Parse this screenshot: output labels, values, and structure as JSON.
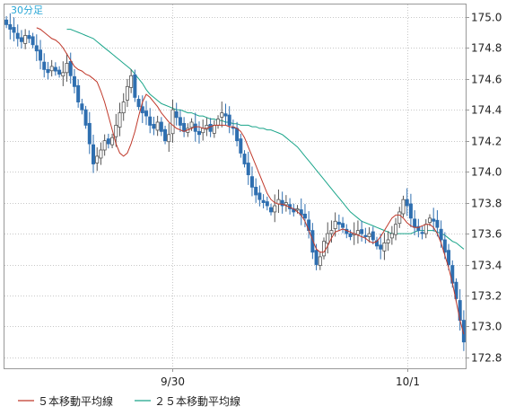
{
  "chart_data": {
    "type": "candlestick",
    "timeframe_label": "30分足",
    "y_ticks": [
      "175.0",
      "174.8",
      "174.6",
      "174.4",
      "174.2",
      "174.0",
      "173.8",
      "173.6",
      "173.4",
      "173.2",
      "173.0",
      "172.8"
    ],
    "ylim": [
      172.73,
      175.08
    ],
    "x_labels": [
      {
        "label": "9/30",
        "index": 44
      },
      {
        "label": "10/1",
        "index": 106
      }
    ],
    "grid": true,
    "legend": [
      {
        "label": "５本移動平均線",
        "color": "#c0392b"
      },
      {
        "label": "２５本移動平均線",
        "color": "#1aa58a"
      }
    ],
    "colors": {
      "up": "#ffffff",
      "down": "#2f6fb0",
      "ma5": "#c0392b",
      "ma25": "#1aa58a",
      "grid": "#c8c8c8"
    },
    "closes": [
      174.95,
      174.92,
      174.9,
      174.86,
      174.84,
      174.88,
      174.86,
      174.82,
      174.78,
      174.72,
      174.66,
      174.64,
      174.68,
      174.65,
      174.63,
      174.64,
      174.7,
      174.62,
      174.55,
      174.45,
      174.4,
      174.3,
      174.18,
      174.05,
      174.1,
      174.14,
      174.2,
      174.18,
      174.22,
      174.3,
      174.38,
      174.45,
      174.55,
      174.62,
      174.48,
      174.42,
      174.38,
      174.36,
      174.3,
      174.28,
      174.32,
      174.26,
      174.2,
      174.24,
      174.4,
      174.35,
      174.3,
      174.26,
      174.28,
      174.32,
      174.26,
      174.24,
      174.28,
      174.3,
      174.26,
      174.3,
      174.34,
      174.38,
      174.36,
      174.3,
      174.28,
      174.2,
      174.12,
      174.05,
      173.98,
      173.9,
      173.85,
      173.82,
      173.8,
      173.78,
      173.74,
      173.78,
      173.82,
      173.78,
      173.8,
      173.76,
      173.74,
      173.76,
      173.72,
      173.7,
      173.62,
      173.48,
      173.4,
      173.45,
      173.55,
      173.6,
      173.62,
      173.68,
      173.66,
      173.64,
      173.6,
      173.58,
      173.6,
      173.62,
      173.6,
      173.58,
      173.6,
      173.56,
      173.52,
      173.5,
      173.54,
      173.56,
      173.6,
      173.66,
      173.74,
      173.82,
      173.78,
      173.7,
      173.64,
      173.62,
      173.6,
      173.66,
      173.7,
      173.68,
      173.64,
      173.56,
      173.48,
      173.4,
      173.28,
      173.18,
      173.04,
      172.9
    ],
    "ma5": [
      174.93,
      174.92,
      174.9,
      174.88,
      174.86,
      174.85,
      174.83,
      174.8,
      174.76,
      174.72,
      174.68,
      174.66,
      174.65,
      174.63,
      174.62,
      174.6,
      174.58,
      174.52,
      174.45,
      174.36,
      174.27,
      174.18,
      174.12,
      174.1,
      174.12,
      174.18,
      174.26,
      174.36,
      174.45,
      174.5,
      174.48,
      174.45,
      174.42,
      174.38,
      174.35,
      174.32,
      174.3,
      174.28,
      174.27,
      174.26,
      174.27,
      174.28,
      174.29,
      174.29,
      174.28,
      174.28,
      174.29,
      174.3,
      174.3,
      174.3,
      174.3,
      174.29,
      174.29,
      174.28,
      174.26,
      174.22,
      174.16,
      174.1,
      174.04,
      173.98,
      173.92,
      173.86,
      173.82,
      173.8,
      173.79,
      173.79,
      173.78,
      173.77,
      173.76,
      173.74,
      173.72,
      173.68,
      173.62,
      173.56,
      173.5,
      173.48,
      173.48,
      173.52,
      173.57,
      173.61,
      173.62,
      173.63,
      173.62,
      173.61,
      173.6,
      173.59,
      173.58,
      173.57,
      173.55,
      173.54,
      173.55,
      173.58,
      173.62,
      173.66,
      173.7,
      173.72,
      173.72,
      173.7,
      173.67,
      173.65,
      173.64,
      173.64,
      173.65,
      173.66,
      173.66,
      173.64,
      173.6,
      173.54,
      173.46,
      173.38,
      173.28,
      173.16,
      173.04,
      172.95
    ],
    "ma25": [
      174.92,
      174.92,
      174.91,
      174.9,
      174.89,
      174.88,
      174.87,
      174.86,
      174.84,
      174.82,
      174.8,
      174.78,
      174.76,
      174.74,
      174.72,
      174.7,
      174.68,
      174.66,
      174.63,
      174.6,
      174.57,
      174.53,
      174.5,
      174.48,
      174.46,
      174.44,
      174.43,
      174.42,
      174.41,
      174.4,
      174.4,
      174.39,
      174.38,
      174.38,
      174.37,
      174.36,
      174.36,
      174.35,
      174.34,
      174.34,
      174.33,
      174.33,
      174.32,
      174.32,
      174.31,
      174.31,
      174.3,
      174.3,
      174.3,
      174.29,
      174.29,
      174.28,
      174.28,
      174.27,
      174.27,
      174.26,
      174.25,
      174.24,
      174.22,
      174.2,
      174.18,
      174.16,
      174.13,
      174.1,
      174.07,
      174.04,
      174.01,
      173.98,
      173.95,
      173.92,
      173.89,
      173.86,
      173.83,
      173.8,
      173.77,
      173.74,
      173.72,
      173.7,
      173.68,
      173.67,
      173.66,
      173.65,
      173.64,
      173.63,
      173.62,
      173.61,
      173.6,
      173.6,
      173.6,
      173.6,
      173.6,
      173.6,
      173.61,
      173.62,
      173.62,
      173.62,
      173.62,
      173.62,
      173.61,
      173.6,
      173.59,
      173.57,
      173.55,
      173.54,
      173.52,
      173.5
    ]
  }
}
